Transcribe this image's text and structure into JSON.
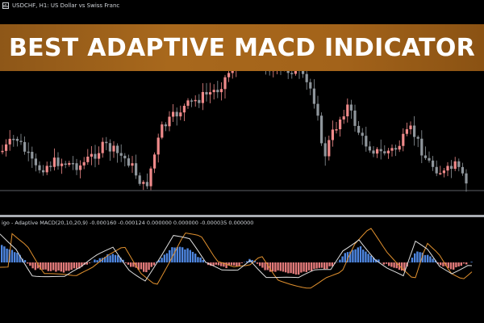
{
  "window": {
    "title": "USDCHF, H1:  US Dollar vs Swiss Franc",
    "icon": "chart-window-icon"
  },
  "banner": {
    "headline": "BEST ADAPTIVE MACD INDICATOR"
  },
  "indicator": {
    "label": "igo - Adaptive MACD(20,10,20,9) -0.000160 -0.000124 0.000000 0.000000 -0.000035 0.000000"
  },
  "colors": {
    "background": "#000000",
    "bull_candle": "#f08a8a",
    "bear_candle": "#8f969c",
    "hist_positive": "#4e86e0",
    "hist_negative": "#e27a7a",
    "line_fast": "#e0e0e0",
    "line_slow": "#e0902e",
    "banner": "#a3631a"
  }
}
